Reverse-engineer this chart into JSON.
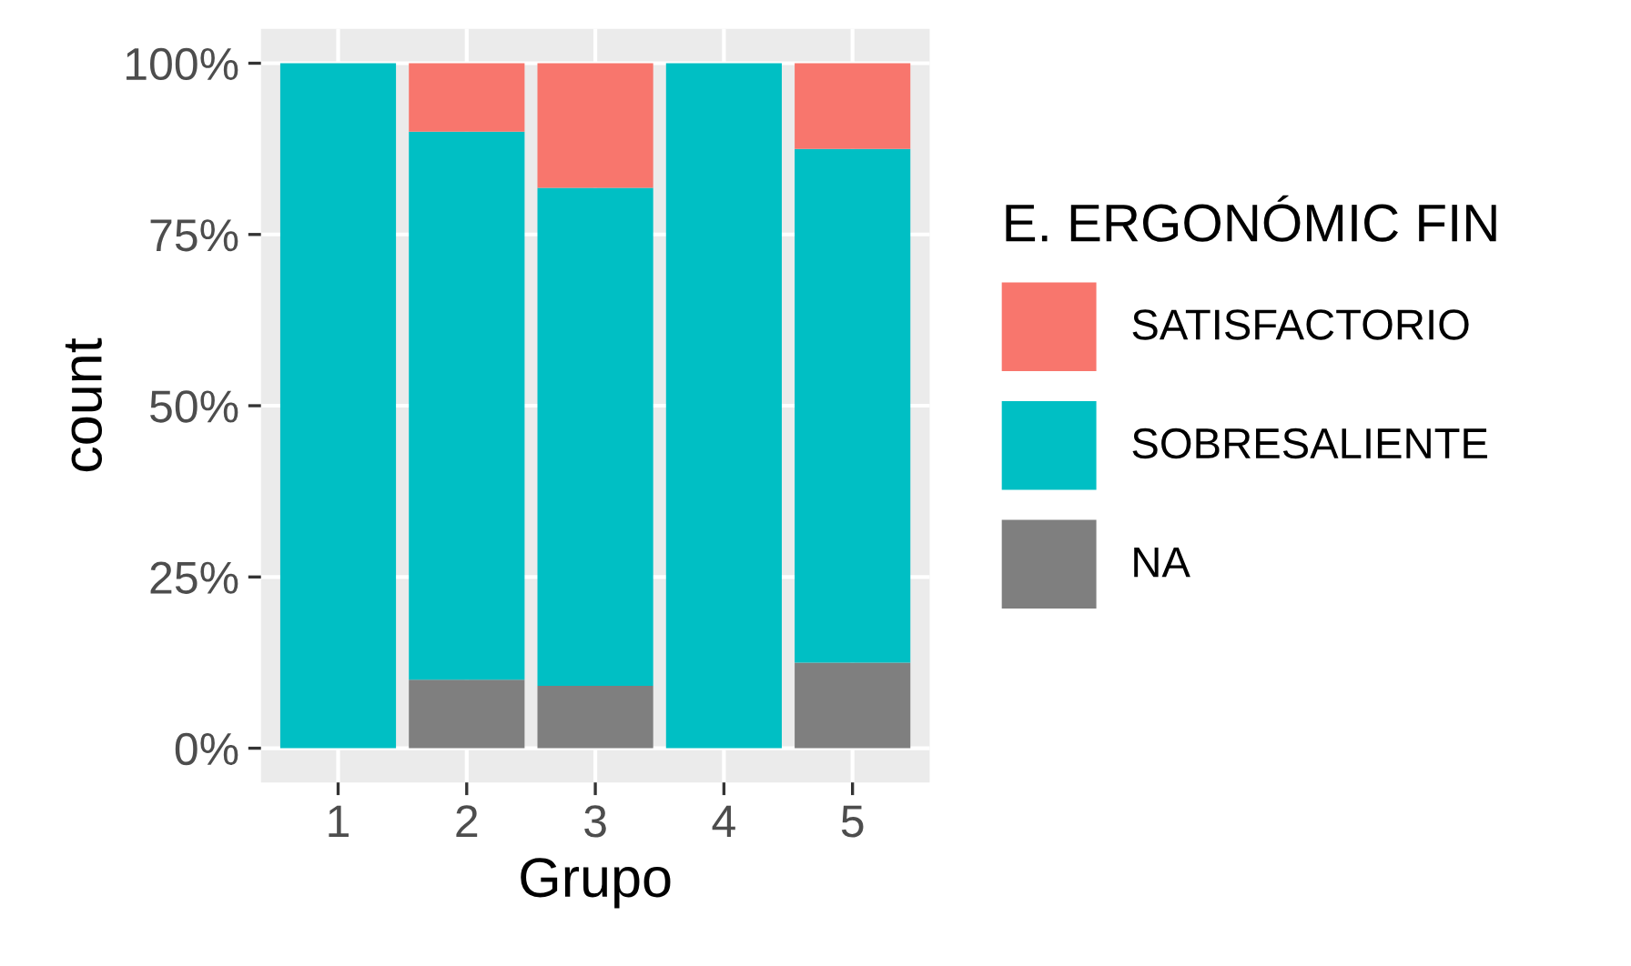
{
  "chart_data": {
    "type": "bar",
    "stacked": true,
    "xlabel": "Grupo",
    "ylabel": "count",
    "legend_title": "E. ERGONÓMIC FIN",
    "categories": [
      "1",
      "2",
      "3",
      "4",
      "5"
    ],
    "series": [
      {
        "name": "NA",
        "color": "#7f7f7f",
        "values": [
          0,
          10,
          9.1,
          0,
          12.5
        ]
      },
      {
        "name": "SOBRESALIENTE",
        "color": "#00bfc4",
        "values": [
          100,
          80,
          72.7,
          100,
          75
        ]
      },
      {
        "name": "SATISFACTORIO",
        "color": "#f8766d",
        "values": [
          0,
          10,
          18.2,
          0,
          12.5
        ]
      }
    ],
    "ylim": [
      -5,
      105
    ],
    "yticks": [
      {
        "value": 0,
        "label": "0%"
      },
      {
        "value": 25,
        "label": "25%"
      },
      {
        "value": 50,
        "label": "50%"
      },
      {
        "value": 75,
        "label": "75%"
      },
      {
        "value": 100,
        "label": "100%"
      }
    ],
    "grid": true,
    "legend": "right"
  }
}
